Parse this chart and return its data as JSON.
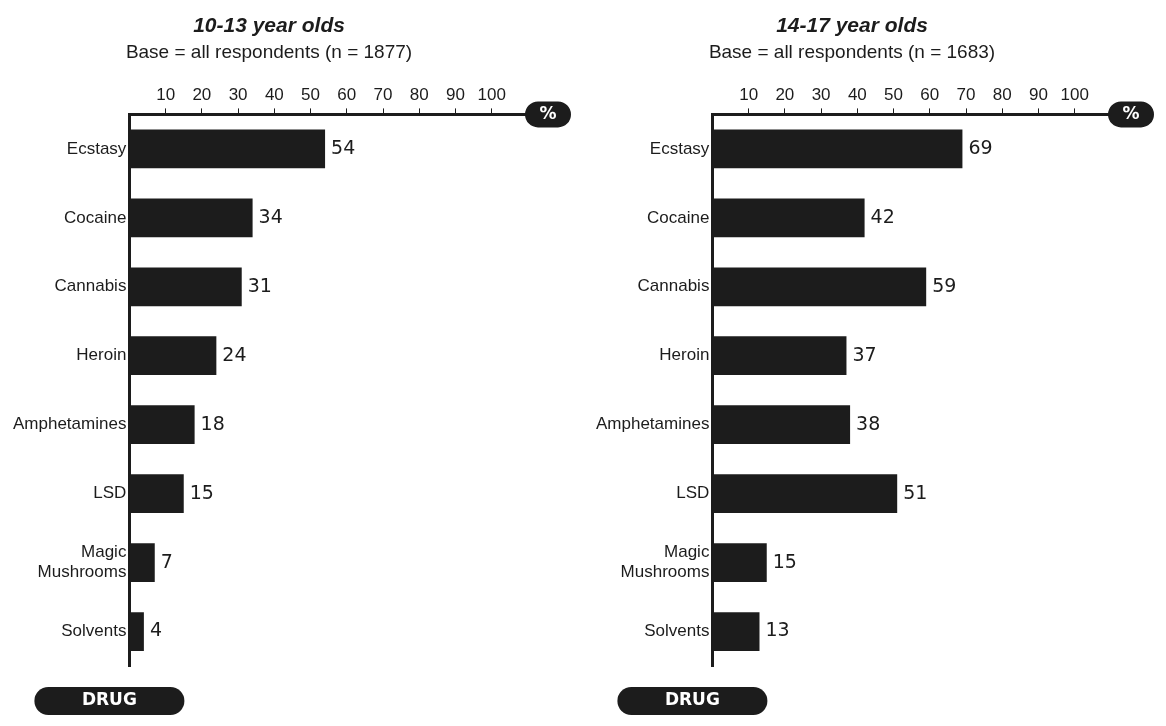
{
  "chart_data": [
    {
      "type": "bar",
      "orientation": "horizontal",
      "title": "10-13 year olds",
      "subtitle": "Base = all respondents (n = 1877)",
      "xlabel": "%",
      "ylabel": "DRUG",
      "categories": [
        "Ecstasy",
        "Cocaine",
        "Cannabis",
        "Heroin",
        "Amphetamines",
        "LSD",
        "Magic Mushrooms",
        "Solvents"
      ],
      "values": [
        54,
        34,
        31,
        24,
        18,
        15,
        7,
        4
      ],
      "color": "#1c1c1c",
      "xlim": [
        0,
        110
      ],
      "xticks": [
        10,
        20,
        30,
        40,
        50,
        60,
        70,
        80,
        90,
        100
      ],
      "grid": false,
      "legend": false,
      "data_labels": true
    },
    {
      "type": "bar",
      "orientation": "horizontal",
      "title": "14-17 year olds",
      "subtitle": "Base = all respondents (n = 1683)",
      "xlabel": "%",
      "ylabel": "DRUG",
      "categories": [
        "Ecstasy",
        "Cocaine",
        "Cannabis",
        "Heroin",
        "Amphetamines",
        "LSD",
        "Magic Mushrooms",
        "Solvents"
      ],
      "values": [
        69,
        42,
        59,
        37,
        38,
        51,
        15,
        13
      ],
      "color": "#1c1c1c",
      "xlim": [
        0,
        110
      ],
      "xticks": [
        10,
        20,
        30,
        40,
        50,
        60,
        70,
        80,
        90,
        100
      ],
      "grid": false,
      "legend": false,
      "data_labels": true
    }
  ]
}
